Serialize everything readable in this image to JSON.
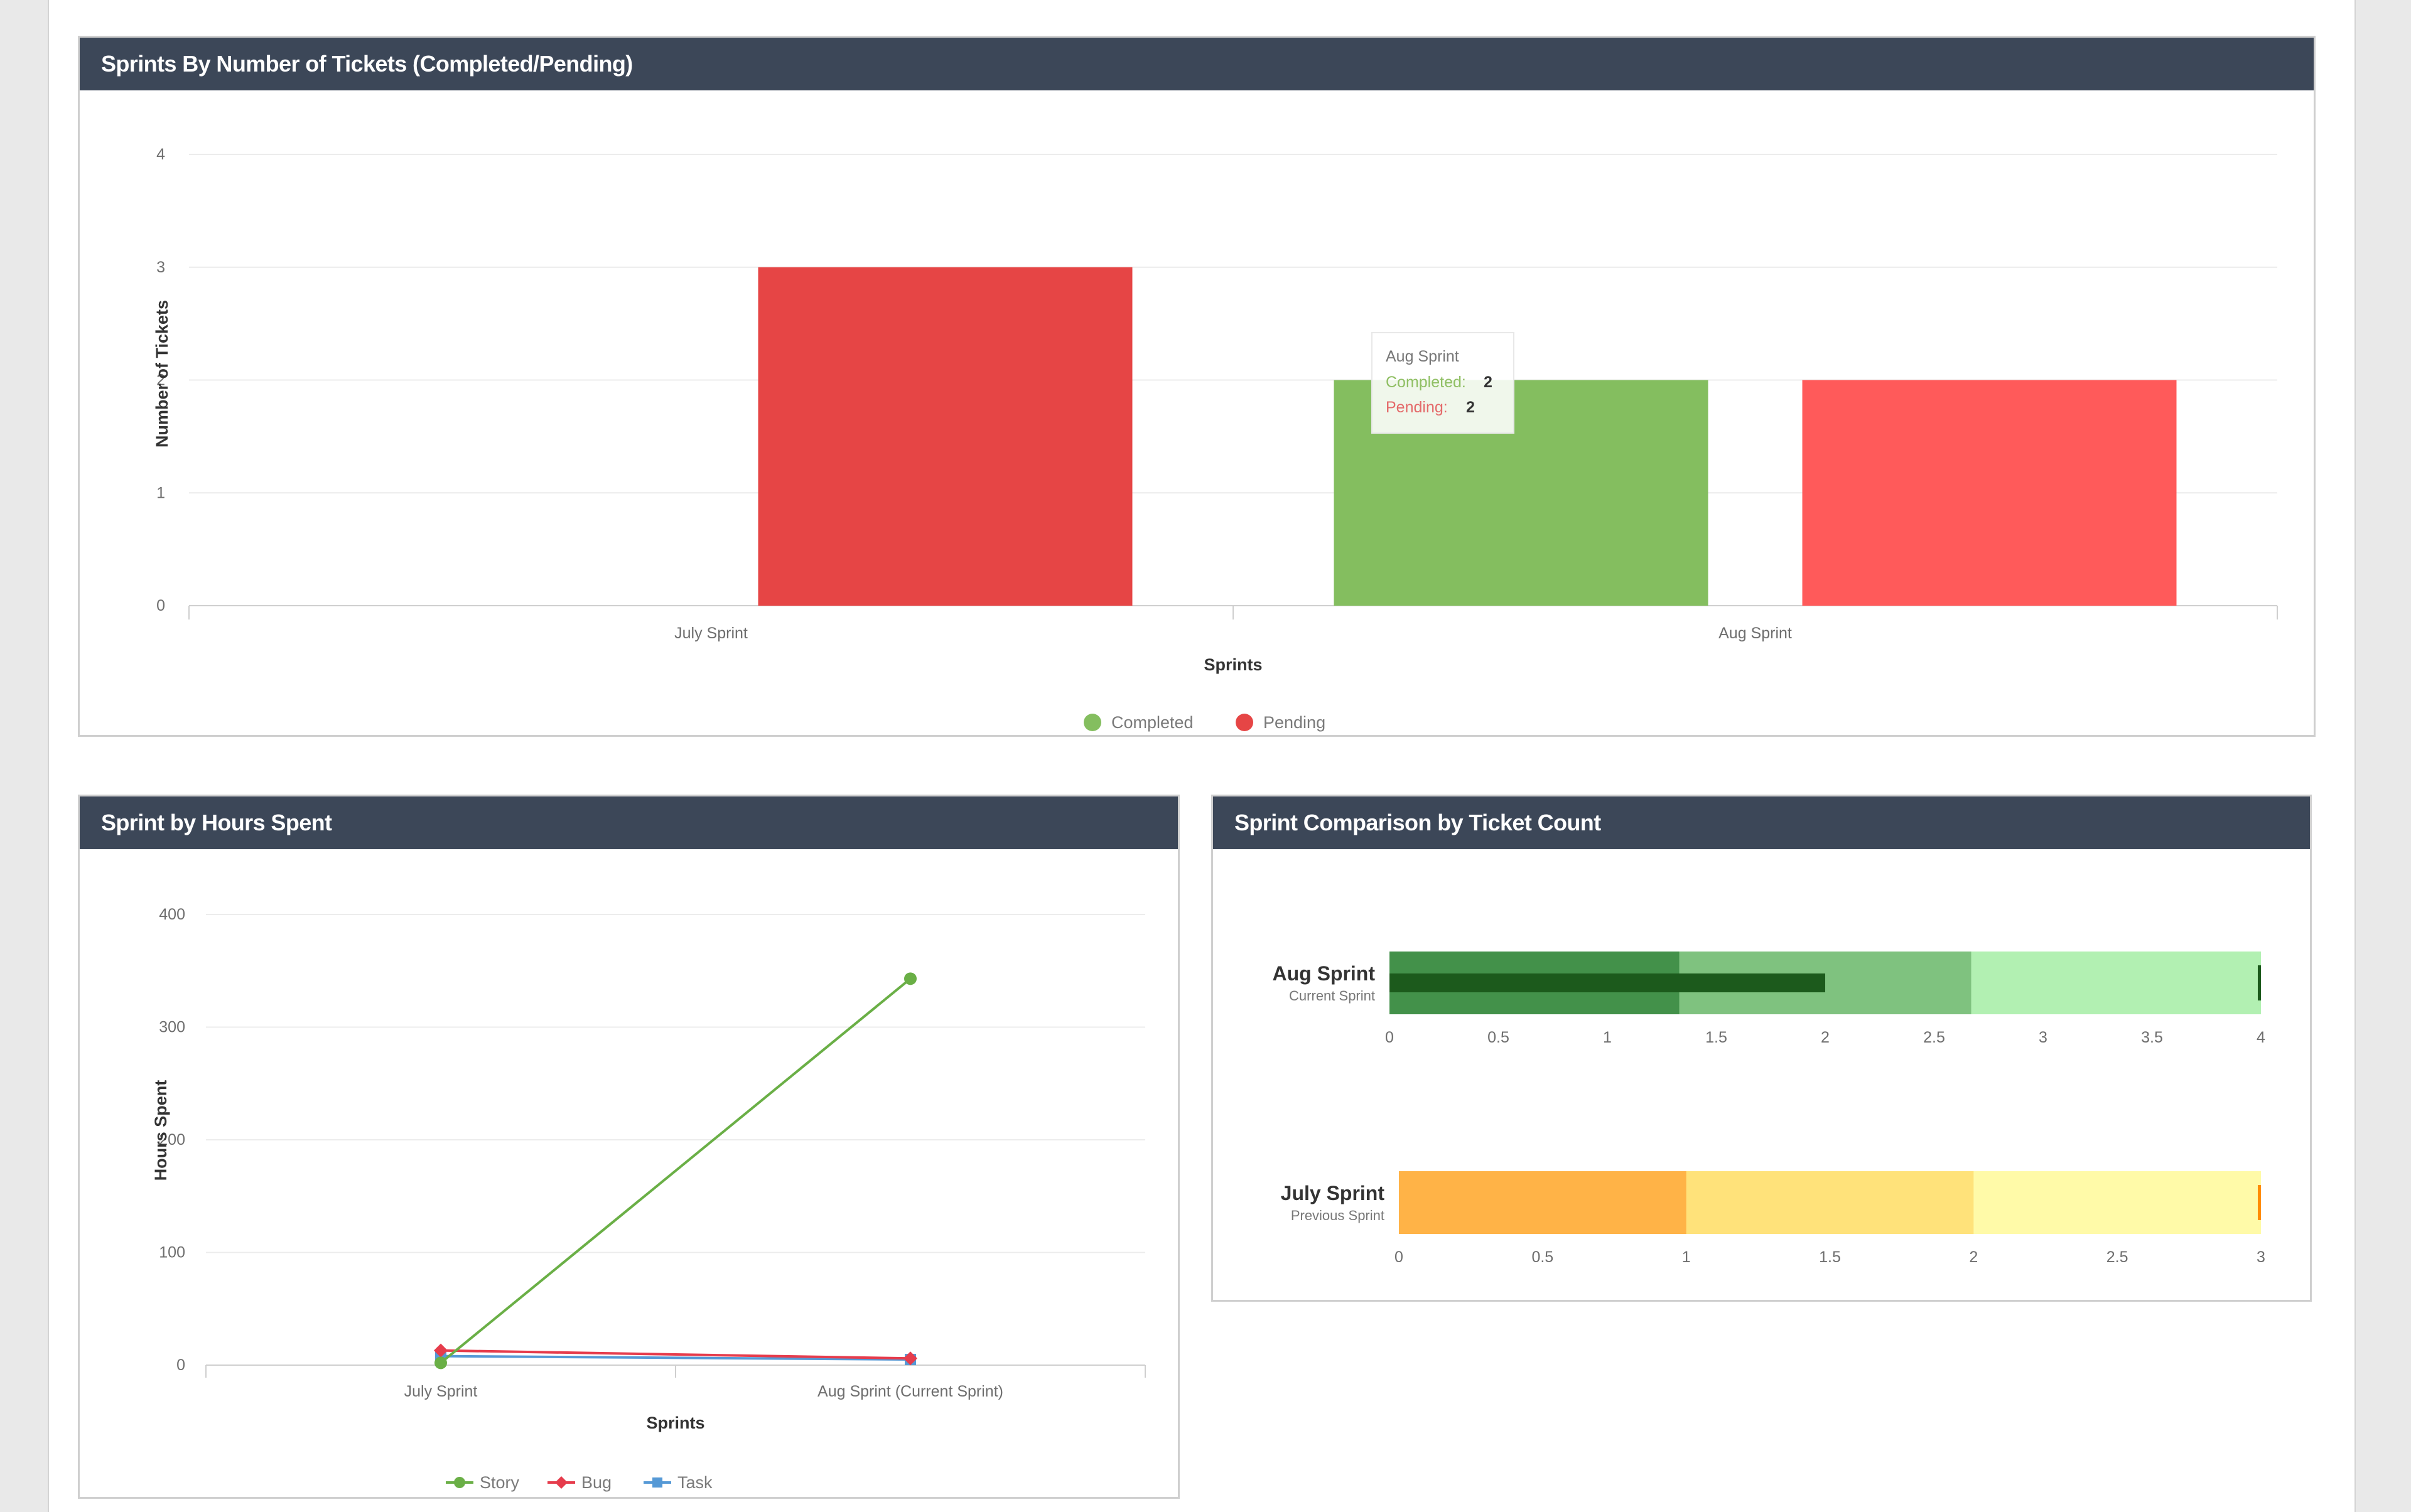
{
  "colors": {
    "header_bg": "#3c4758",
    "completed": "#84be5f",
    "pending_july": "#e64545",
    "pending_aug": "#ff5a5a",
    "story": "#6aaf46",
    "bug": "#e63c4c",
    "task": "#5599d6",
    "aug_ranges": [
      "#43914a",
      "#7fc27f",
      "#b2f0b2"
    ],
    "aug_measure": "#1c5a1c",
    "july_ranges": [
      "#ffb347",
      "#ffe27a",
      "#fffaa8"
    ],
    "july_marker": "#ff8c00"
  },
  "chart_data": [
    {
      "type": "bar",
      "title": "Sprints By Number of Tickets (Completed/Pending)",
      "xlabel": "Sprints",
      "ylabel": "Number of Tickets",
      "categories": [
        "July Sprint",
        "Aug Sprint"
      ],
      "series": [
        {
          "name": "Completed",
          "values": [
            0,
            2
          ]
        },
        {
          "name": "Pending",
          "values": [
            3,
            2
          ]
        }
      ],
      "ylim": [
        0,
        4
      ],
      "yticks": [
        "0",
        "1",
        "2",
        "3",
        "4"
      ],
      "grid": true,
      "legend": "bottom-center",
      "tooltip": {
        "title": "Aug Sprint",
        "completed_label": "Completed:",
        "completed_value": "2",
        "pending_label": "Pending:",
        "pending_value": "2"
      }
    },
    {
      "type": "line",
      "title": "Sprint by Hours Spent",
      "xlabel": "Sprints",
      "ylabel": "Hours Spent",
      "categories": [
        "July Sprint",
        "Aug Sprint (Current Sprint)"
      ],
      "series": [
        {
          "name": "Story",
          "values": [
            2,
            343
          ]
        },
        {
          "name": "Bug",
          "values": [
            13,
            6
          ]
        },
        {
          "name": "Task",
          "values": [
            8,
            5
          ]
        }
      ],
      "ylim": [
        0,
        400
      ],
      "yticks": [
        "0",
        "100",
        "200",
        "300",
        "400"
      ],
      "grid": true,
      "legend": "bottom-center"
    },
    {
      "type": "bullet",
      "title": "Sprint Comparison by Ticket Count",
      "rows": [
        {
          "name": "Aug Sprint",
          "subtitle": "Current Sprint",
          "max": 4,
          "ticks": [
            "0",
            "0.5",
            "1",
            "1.5",
            "2",
            "2.5",
            "3",
            "3.5",
            "4"
          ],
          "ranges": [
            1.33,
            2.67,
            4
          ],
          "measure": 2,
          "target": 4
        },
        {
          "name": "July Sprint",
          "subtitle": "Previous Sprint",
          "max": 3,
          "ticks": [
            "0",
            "0.5",
            "1",
            "1.5",
            "2",
            "2.5",
            "3"
          ],
          "ranges": [
            1,
            2,
            3
          ],
          "measure": 0,
          "target": 3
        }
      ]
    }
  ]
}
